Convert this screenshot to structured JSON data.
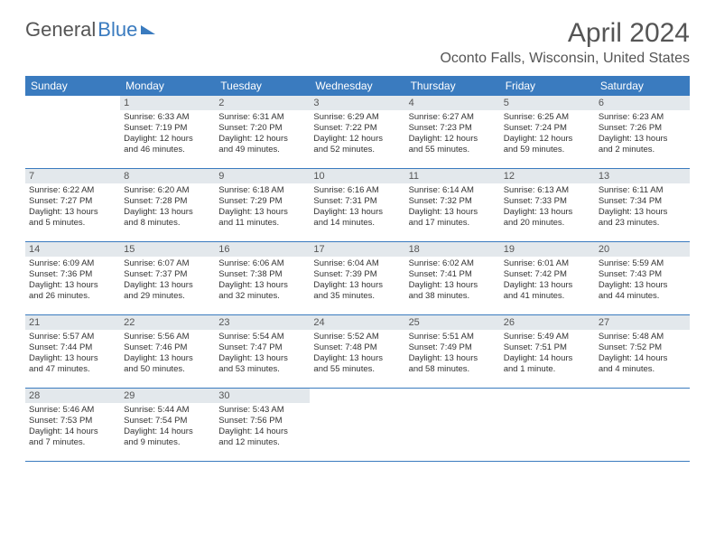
{
  "brand": {
    "part1": "General",
    "part2": "Blue"
  },
  "header": {
    "title": "April 2024",
    "subtitle": "Oconto Falls, Wisconsin, United States"
  },
  "calendar": {
    "headers": [
      "Sunday",
      "Monday",
      "Tuesday",
      "Wednesday",
      "Thursday",
      "Friday",
      "Saturday"
    ],
    "colors": {
      "header_bg": "#3a7bbf",
      "header_fg": "#ffffff",
      "daynum_bg": "#e3e8ec",
      "rule": "#3a7bbf",
      "text": "#333333"
    },
    "weeks": [
      [
        {
          "day": "",
          "empty": true,
          "sunrise": "",
          "sunset": "",
          "daylight1": "",
          "daylight2": ""
        },
        {
          "day": "1",
          "sunrise": "Sunrise: 6:33 AM",
          "sunset": "Sunset: 7:19 PM",
          "daylight1": "Daylight: 12 hours",
          "daylight2": "and 46 minutes."
        },
        {
          "day": "2",
          "sunrise": "Sunrise: 6:31 AM",
          "sunset": "Sunset: 7:20 PM",
          "daylight1": "Daylight: 12 hours",
          "daylight2": "and 49 minutes."
        },
        {
          "day": "3",
          "sunrise": "Sunrise: 6:29 AM",
          "sunset": "Sunset: 7:22 PM",
          "daylight1": "Daylight: 12 hours",
          "daylight2": "and 52 minutes."
        },
        {
          "day": "4",
          "sunrise": "Sunrise: 6:27 AM",
          "sunset": "Sunset: 7:23 PM",
          "daylight1": "Daylight: 12 hours",
          "daylight2": "and 55 minutes."
        },
        {
          "day": "5",
          "sunrise": "Sunrise: 6:25 AM",
          "sunset": "Sunset: 7:24 PM",
          "daylight1": "Daylight: 12 hours",
          "daylight2": "and 59 minutes."
        },
        {
          "day": "6",
          "sunrise": "Sunrise: 6:23 AM",
          "sunset": "Sunset: 7:26 PM",
          "daylight1": "Daylight: 13 hours",
          "daylight2": "and 2 minutes."
        }
      ],
      [
        {
          "day": "7",
          "sunrise": "Sunrise: 6:22 AM",
          "sunset": "Sunset: 7:27 PM",
          "daylight1": "Daylight: 13 hours",
          "daylight2": "and 5 minutes."
        },
        {
          "day": "8",
          "sunrise": "Sunrise: 6:20 AM",
          "sunset": "Sunset: 7:28 PM",
          "daylight1": "Daylight: 13 hours",
          "daylight2": "and 8 minutes."
        },
        {
          "day": "9",
          "sunrise": "Sunrise: 6:18 AM",
          "sunset": "Sunset: 7:29 PM",
          "daylight1": "Daylight: 13 hours",
          "daylight2": "and 11 minutes."
        },
        {
          "day": "10",
          "sunrise": "Sunrise: 6:16 AM",
          "sunset": "Sunset: 7:31 PM",
          "daylight1": "Daylight: 13 hours",
          "daylight2": "and 14 minutes."
        },
        {
          "day": "11",
          "sunrise": "Sunrise: 6:14 AM",
          "sunset": "Sunset: 7:32 PM",
          "daylight1": "Daylight: 13 hours",
          "daylight2": "and 17 minutes."
        },
        {
          "day": "12",
          "sunrise": "Sunrise: 6:13 AM",
          "sunset": "Sunset: 7:33 PM",
          "daylight1": "Daylight: 13 hours",
          "daylight2": "and 20 minutes."
        },
        {
          "day": "13",
          "sunrise": "Sunrise: 6:11 AM",
          "sunset": "Sunset: 7:34 PM",
          "daylight1": "Daylight: 13 hours",
          "daylight2": "and 23 minutes."
        }
      ],
      [
        {
          "day": "14",
          "sunrise": "Sunrise: 6:09 AM",
          "sunset": "Sunset: 7:36 PM",
          "daylight1": "Daylight: 13 hours",
          "daylight2": "and 26 minutes."
        },
        {
          "day": "15",
          "sunrise": "Sunrise: 6:07 AM",
          "sunset": "Sunset: 7:37 PM",
          "daylight1": "Daylight: 13 hours",
          "daylight2": "and 29 minutes."
        },
        {
          "day": "16",
          "sunrise": "Sunrise: 6:06 AM",
          "sunset": "Sunset: 7:38 PM",
          "daylight1": "Daylight: 13 hours",
          "daylight2": "and 32 minutes."
        },
        {
          "day": "17",
          "sunrise": "Sunrise: 6:04 AM",
          "sunset": "Sunset: 7:39 PM",
          "daylight1": "Daylight: 13 hours",
          "daylight2": "and 35 minutes."
        },
        {
          "day": "18",
          "sunrise": "Sunrise: 6:02 AM",
          "sunset": "Sunset: 7:41 PM",
          "daylight1": "Daylight: 13 hours",
          "daylight2": "and 38 minutes."
        },
        {
          "day": "19",
          "sunrise": "Sunrise: 6:01 AM",
          "sunset": "Sunset: 7:42 PM",
          "daylight1": "Daylight: 13 hours",
          "daylight2": "and 41 minutes."
        },
        {
          "day": "20",
          "sunrise": "Sunrise: 5:59 AM",
          "sunset": "Sunset: 7:43 PM",
          "daylight1": "Daylight: 13 hours",
          "daylight2": "and 44 minutes."
        }
      ],
      [
        {
          "day": "21",
          "sunrise": "Sunrise: 5:57 AM",
          "sunset": "Sunset: 7:44 PM",
          "daylight1": "Daylight: 13 hours",
          "daylight2": "and 47 minutes."
        },
        {
          "day": "22",
          "sunrise": "Sunrise: 5:56 AM",
          "sunset": "Sunset: 7:46 PM",
          "daylight1": "Daylight: 13 hours",
          "daylight2": "and 50 minutes."
        },
        {
          "day": "23",
          "sunrise": "Sunrise: 5:54 AM",
          "sunset": "Sunset: 7:47 PM",
          "daylight1": "Daylight: 13 hours",
          "daylight2": "and 53 minutes."
        },
        {
          "day": "24",
          "sunrise": "Sunrise: 5:52 AM",
          "sunset": "Sunset: 7:48 PM",
          "daylight1": "Daylight: 13 hours",
          "daylight2": "and 55 minutes."
        },
        {
          "day": "25",
          "sunrise": "Sunrise: 5:51 AM",
          "sunset": "Sunset: 7:49 PM",
          "daylight1": "Daylight: 13 hours",
          "daylight2": "and 58 minutes."
        },
        {
          "day": "26",
          "sunrise": "Sunrise: 5:49 AM",
          "sunset": "Sunset: 7:51 PM",
          "daylight1": "Daylight: 14 hours",
          "daylight2": "and 1 minute."
        },
        {
          "day": "27",
          "sunrise": "Sunrise: 5:48 AM",
          "sunset": "Sunset: 7:52 PM",
          "daylight1": "Daylight: 14 hours",
          "daylight2": "and 4 minutes."
        }
      ],
      [
        {
          "day": "28",
          "sunrise": "Sunrise: 5:46 AM",
          "sunset": "Sunset: 7:53 PM",
          "daylight1": "Daylight: 14 hours",
          "daylight2": "and 7 minutes."
        },
        {
          "day": "29",
          "sunrise": "Sunrise: 5:44 AM",
          "sunset": "Sunset: 7:54 PM",
          "daylight1": "Daylight: 14 hours",
          "daylight2": "and 9 minutes."
        },
        {
          "day": "30",
          "sunrise": "Sunrise: 5:43 AM",
          "sunset": "Sunset: 7:56 PM",
          "daylight1": "Daylight: 14 hours",
          "daylight2": "and 12 minutes."
        },
        {
          "day": "",
          "empty": true,
          "sunrise": "",
          "sunset": "",
          "daylight1": "",
          "daylight2": ""
        },
        {
          "day": "",
          "empty": true,
          "sunrise": "",
          "sunset": "",
          "daylight1": "",
          "daylight2": ""
        },
        {
          "day": "",
          "empty": true,
          "sunrise": "",
          "sunset": "",
          "daylight1": "",
          "daylight2": ""
        },
        {
          "day": "",
          "empty": true,
          "sunrise": "",
          "sunset": "",
          "daylight1": "",
          "daylight2": ""
        }
      ]
    ]
  }
}
